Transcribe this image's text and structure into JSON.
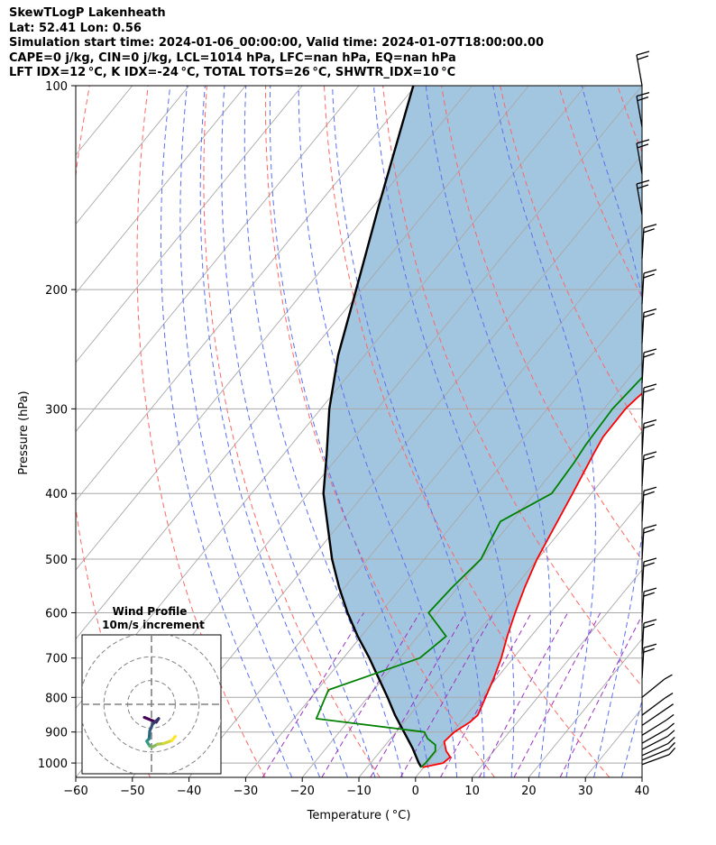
{
  "header": {
    "line1": "SkewTLogP Lakenheath",
    "line2": "Lat: 52.41   Lon: 0.56",
    "line3": "Simulation start time: 2024-01-06_00:00:00, Valid time: 2024-01-07T18:00:00.00",
    "line4": "CAPE=0 j/kg, CIN=0 j/kg, LCL=1014 hPa, LFC=nan hPa, EQ=nan hPa",
    "line5": "LFT IDX=12 °C, K IDX=-24 °C, TOTAL TOTS=26 °C, SHWTR_IDX=10 °C"
  },
  "chart_data": {
    "type": "skewt",
    "xlabel": "Temperature ( °C)",
    "ylabel": "Pressure (hPa)",
    "xlim": [
      -60,
      40
    ],
    "ylim": [
      1050,
      100
    ],
    "xticks": [
      -60,
      -50,
      -40,
      -30,
      -20,
      -10,
      0,
      10,
      20,
      30,
      40
    ],
    "yticks": [
      1000,
      900,
      800,
      700,
      600,
      500,
      400,
      300,
      200,
      100
    ],
    "colors": {
      "temperature": "#ff0000",
      "dewpoint": "#008000",
      "parcel": "#000000",
      "shading": "#a3c6e0",
      "dry_adiabats": "#ff6666",
      "moist_adiabats": "#5a6ff0",
      "isotherms": "#a8a8a8",
      "mixing_ratio": "#9b30c0"
    },
    "temperature": [
      [
        1015,
        -0.2
      ],
      [
        1000,
        2.8
      ],
      [
        980,
        3.2
      ],
      [
        960,
        1.6
      ],
      [
        930,
        -0.1
      ],
      [
        900,
        0.3
      ],
      [
        870,
        1.6
      ],
      [
        850,
        2.0
      ],
      [
        800,
        0.8
      ],
      [
        750,
        -0.5
      ],
      [
        700,
        -2.1
      ],
      [
        650,
        -4.2
      ],
      [
        600,
        -6.2
      ],
      [
        550,
        -8.2
      ],
      [
        500,
        -10.1
      ],
      [
        450,
        -11.6
      ],
      [
        400,
        -13.3
      ],
      [
        350,
        -15.3
      ],
      [
        330,
        -16.1
      ],
      [
        300,
        -16.2
      ],
      [
        290,
        -15.8
      ],
      [
        270,
        -14.6
      ],
      [
        250,
        -13.3
      ],
      [
        240,
        -12.2
      ],
      [
        230,
        -11.9
      ],
      [
        220,
        -12.2
      ],
      [
        200,
        -13.1
      ],
      [
        190,
        -12.6
      ],
      [
        170,
        -11.1
      ],
      [
        150,
        -9.7
      ],
      [
        130,
        -8.3
      ],
      [
        115,
        -6.4
      ],
      [
        100,
        -4.3
      ]
    ],
    "dewpoint": [
      [
        1015,
        -0.5
      ],
      [
        1000,
        -0.3
      ],
      [
        960,
        -0.3
      ],
      [
        940,
        -1.2
      ],
      [
        920,
        -3.5
      ],
      [
        900,
        -5.0
      ],
      [
        860,
        -26.0
      ],
      [
        840,
        -26.5
      ],
      [
        800,
        -27.5
      ],
      [
        780,
        -28.0
      ],
      [
        700,
        -16.5
      ],
      [
        650,
        -15.0
      ],
      [
        600,
        -21.5
      ],
      [
        550,
        -21.0
      ],
      [
        500,
        -20.0
      ],
      [
        470,
        -21.0
      ],
      [
        440,
        -22.0
      ],
      [
        400,
        -17.0
      ],
      [
        360,
        -17.5
      ],
      [
        340,
        -18.0
      ],
      [
        300,
        -18.5
      ],
      [
        270,
        -17.8
      ],
      [
        250,
        -19.0
      ],
      [
        240,
        -18.7
      ],
      [
        230,
        -18.0
      ],
      [
        220,
        -18.3
      ],
      [
        210,
        -18.0
      ],
      [
        195,
        -18.5
      ],
      [
        180,
        -17.5
      ],
      [
        150,
        -11.1
      ],
      [
        120,
        -4.5
      ],
      [
        100,
        1.2
      ]
    ],
    "parcel": [
      [
        1015,
        -0.4
      ],
      [
        1000,
        -1.5
      ],
      [
        950,
        -4.8
      ],
      [
        900,
        -8.6
      ],
      [
        850,
        -12.6
      ],
      [
        800,
        -16.5
      ],
      [
        750,
        -20.8
      ],
      [
        700,
        -25.4
      ],
      [
        650,
        -30.6
      ],
      [
        600,
        -35.8
      ],
      [
        550,
        -41.0
      ],
      [
        500,
        -46.3
      ],
      [
        450,
        -51.5
      ],
      [
        400,
        -57.3
      ],
      [
        350,
        -62.4
      ],
      [
        300,
        -68.5
      ],
      [
        250,
        -74.7
      ],
      [
        200,
        -81.0
      ],
      [
        150,
        -89.2
      ],
      [
        100,
        -100.4
      ]
    ],
    "wind_pressures": [
      1005,
      990,
      975,
      955,
      935,
      910,
      880,
      850,
      800,
      750,
      690,
      620,
      560,
      500,
      440,
      390,
      350,
      310,
      275,
      240,
      210,
      180,
      155,
      135,
      115,
      100
    ]
  },
  "inset": {
    "title": "Wind Profile",
    "subtitle": "10m/s increment",
    "colors": {
      "grid": "#808080",
      "hodo_start": "#440154",
      "hodo_mid": "#21918c",
      "hodo_end": "#fde725"
    },
    "hodograph": [
      [
        -1.2,
        -2.2
      ],
      [
        0.8,
        -3.0
      ],
      [
        1.2,
        -2.4
      ],
      [
        0.2,
        -3.3
      ],
      [
        -0.3,
        -4.5
      ],
      [
        -0.4,
        -5.8
      ],
      [
        -0.8,
        -6.2
      ],
      [
        -0.3,
        -7.0
      ],
      [
        0.1,
        -7.2
      ],
      [
        1.0,
        -6.7
      ],
      [
        2.0,
        -6.6
      ],
      [
        3.4,
        -6.1
      ],
      [
        4.0,
        -5.4
      ]
    ]
  }
}
